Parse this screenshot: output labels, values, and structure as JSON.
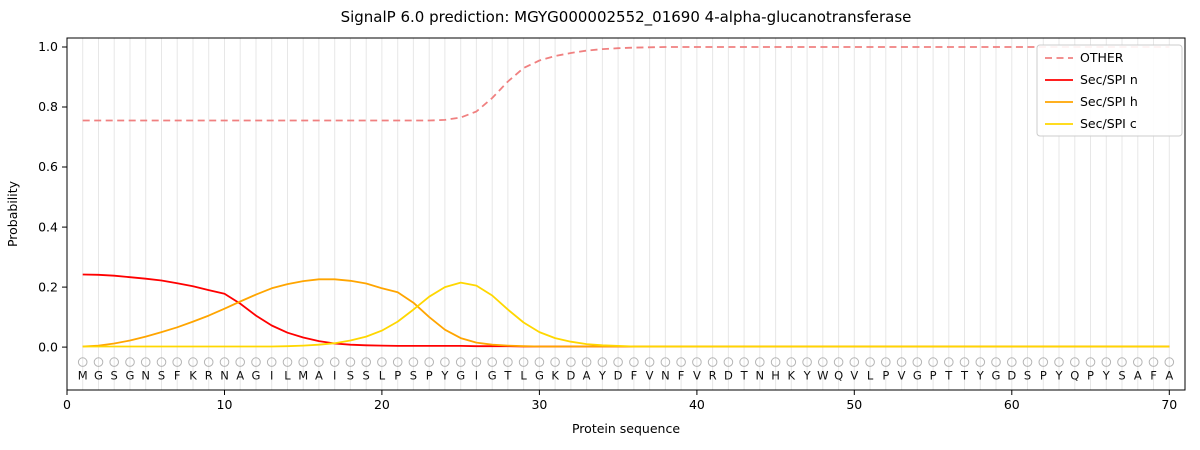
{
  "chart_data": {
    "type": "line",
    "title": "SignalP 6.0 prediction: MGYG000002552_01690 4-alpha-glucanotransferase",
    "xlabel": "Protein sequence",
    "ylabel": "Probability",
    "xlim": [
      0,
      71
    ],
    "ylim": [
      -0.143,
      1.03
    ],
    "x_ticks": [
      0,
      10,
      20,
      30,
      40,
      50,
      60,
      70
    ],
    "y_ticks": [
      0.0,
      0.2,
      0.4,
      0.6,
      0.8,
      1.0
    ],
    "grid": "vertical-per-residue",
    "legend_position": "upper right",
    "sequence": "MGSGNSFKRNAGILMAISSLPSPYGIGTLGKDAYDFVNFVRDTNHKYWQVLPVGPTTYGDSPYQPYSAFA",
    "style": {
      "grid_color": "#e7e7e7",
      "frame_color": "#000000",
      "marker_color": "#b5b5b5",
      "legend_border": "#cccccc",
      "text_color": "#000000"
    },
    "series": [
      {
        "name": "OTHER",
        "color": "#f08080",
        "dash": "7 4.5",
        "values": [
          0.755,
          0.755,
          0.755,
          0.755,
          0.755,
          0.755,
          0.755,
          0.755,
          0.755,
          0.755,
          0.755,
          0.755,
          0.755,
          0.755,
          0.755,
          0.755,
          0.755,
          0.755,
          0.755,
          0.755,
          0.755,
          0.755,
          0.755,
          0.757,
          0.765,
          0.785,
          0.83,
          0.885,
          0.93,
          0.955,
          0.97,
          0.98,
          0.988,
          0.993,
          0.996,
          0.998,
          0.999,
          1.0,
          1.0,
          1.0,
          1.0,
          1.0,
          1.0,
          1.0,
          1.0,
          1.0,
          1.0,
          1.0,
          1.0,
          1.0,
          1.0,
          1.0,
          1.0,
          1.0,
          1.0,
          1.0,
          1.0,
          1.0,
          1.0,
          1.0,
          1.0,
          1.0,
          1.0,
          1.0,
          1.0,
          1.0,
          1.0,
          1.0,
          1.0,
          1.0
        ]
      },
      {
        "name": "Sec/SPI n",
        "color": "#ff0000",
        "dash": null,
        "values": [
          0.242,
          0.241,
          0.238,
          0.233,
          0.228,
          0.222,
          0.213,
          0.203,
          0.19,
          0.178,
          0.145,
          0.105,
          0.072,
          0.048,
          0.032,
          0.02,
          0.012,
          0.008,
          0.006,
          0.005,
          0.004,
          0.004,
          0.004,
          0.004,
          0.004,
          0.003,
          0.003,
          0.003,
          0.002,
          0.002,
          0.002,
          0.002,
          0.002,
          0.002,
          0.002,
          0.002,
          0.002,
          0.002,
          0.002,
          0.002,
          0.002,
          0.002,
          0.002,
          0.002,
          0.002,
          0.002,
          0.002,
          0.002,
          0.002,
          0.002,
          0.002,
          0.002,
          0.002,
          0.002,
          0.002,
          0.002,
          0.002,
          0.002,
          0.002,
          0.002,
          0.002,
          0.002,
          0.002,
          0.002,
          0.002,
          0.002,
          0.002,
          0.002,
          0.002,
          0.002
        ]
      },
      {
        "name": "Sec/SPI h",
        "color": "#ffa500",
        "dash": null,
        "values": [
          0.002,
          0.005,
          0.012,
          0.022,
          0.035,
          0.05,
          0.066,
          0.085,
          0.105,
          0.128,
          0.152,
          0.175,
          0.196,
          0.21,
          0.22,
          0.226,
          0.226,
          0.221,
          0.212,
          0.196,
          0.183,
          0.148,
          0.1,
          0.058,
          0.03,
          0.015,
          0.008,
          0.005,
          0.003,
          0.002,
          0.002,
          0.002,
          0.002,
          0.002,
          0.002,
          0.002,
          0.002,
          0.002,
          0.002,
          0.002,
          0.002,
          0.002,
          0.002,
          0.002,
          0.002,
          0.002,
          0.002,
          0.002,
          0.002,
          0.002,
          0.002,
          0.002,
          0.002,
          0.002,
          0.002,
          0.002,
          0.002,
          0.002,
          0.002,
          0.002,
          0.002,
          0.002,
          0.002,
          0.002,
          0.002,
          0.002,
          0.002,
          0.002,
          0.002,
          0.002
        ]
      },
      {
        "name": "Sec/SPI c",
        "color": "#ffd700",
        "dash": null,
        "values": [
          0.002,
          0.002,
          0.002,
          0.002,
          0.002,
          0.002,
          0.002,
          0.002,
          0.002,
          0.002,
          0.002,
          0.002,
          0.002,
          0.003,
          0.005,
          0.008,
          0.013,
          0.022,
          0.035,
          0.055,
          0.085,
          0.125,
          0.168,
          0.2,
          0.215,
          0.205,
          0.172,
          0.125,
          0.082,
          0.05,
          0.03,
          0.018,
          0.01,
          0.006,
          0.004,
          0.002,
          0.002,
          0.002,
          0.002,
          0.002,
          0.002,
          0.002,
          0.002,
          0.002,
          0.002,
          0.002,
          0.002,
          0.002,
          0.002,
          0.002,
          0.002,
          0.002,
          0.002,
          0.002,
          0.002,
          0.002,
          0.002,
          0.002,
          0.002,
          0.002,
          0.002,
          0.002,
          0.002,
          0.002,
          0.002,
          0.002,
          0.002,
          0.002,
          0.002,
          0.002
        ]
      }
    ]
  }
}
